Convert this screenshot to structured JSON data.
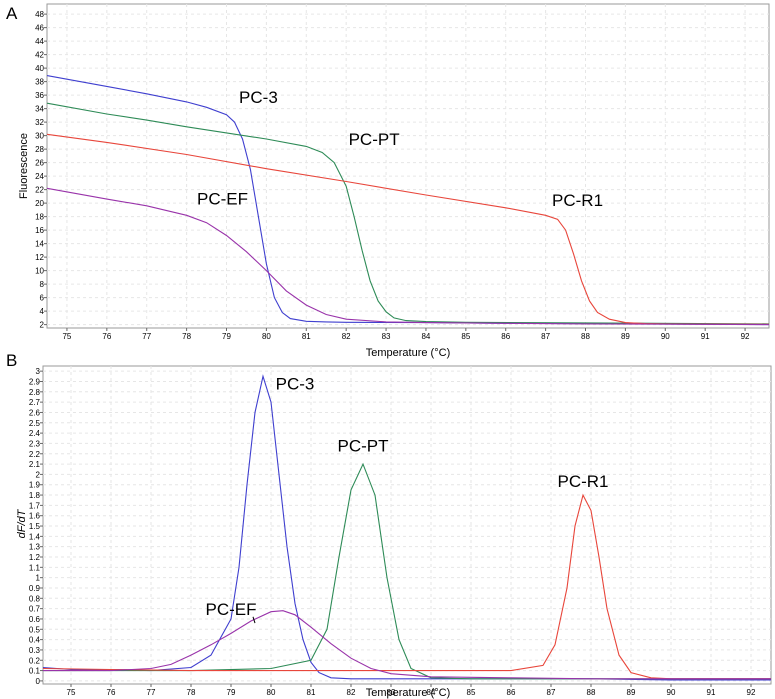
{
  "chart_data": [
    {
      "type": "line",
      "panel": "A",
      "xlabel": "Temperature (°C)",
      "ylabel": "Fluorescence",
      "xlim": [
        74.5,
        92.6
      ],
      "ylim": [
        1.5,
        49.5
      ],
      "xticks": [
        75,
        76,
        77,
        78,
        79,
        80,
        81,
        82,
        83,
        84,
        85,
        86,
        87,
        88,
        89,
        90,
        91,
        92
      ],
      "yticks": [
        2,
        4,
        6,
        8,
        10,
        12,
        14,
        16,
        18,
        20,
        22,
        24,
        26,
        28,
        30,
        32,
        34,
        36,
        38,
        40,
        42,
        44,
        46,
        48
      ],
      "grid": true,
      "series": [
        {
          "name": "PC-3",
          "color": "#3f3fcf",
          "x": [
            74.5,
            76,
            77,
            78,
            78.5,
            79,
            79.2,
            79.4,
            79.6,
            79.8,
            80,
            80.2,
            80.4,
            80.6,
            81,
            81.5,
            82,
            84,
            86,
            88,
            90,
            92.6
          ],
          "y": [
            38.9,
            37.3,
            36.2,
            35.0,
            34.2,
            33.1,
            32.0,
            29.5,
            25.0,
            18.0,
            11.0,
            6.0,
            3.8,
            2.9,
            2.5,
            2.4,
            2.35,
            2.3,
            2.2,
            2.15,
            2.1,
            2.0
          ]
        },
        {
          "name": "PC-PT",
          "color": "#2e8b57",
          "x": [
            74.5,
            76,
            77,
            78,
            79,
            80,
            81,
            81.4,
            81.7,
            82,
            82.2,
            82.4,
            82.6,
            82.8,
            83,
            83.2,
            83.5,
            84,
            85,
            88,
            92.6
          ],
          "y": [
            34.8,
            33.2,
            32.3,
            31.3,
            30.4,
            29.5,
            28.4,
            27.5,
            26.0,
            22.5,
            18.0,
            13.0,
            8.5,
            5.5,
            3.9,
            3.0,
            2.6,
            2.45,
            2.35,
            2.25,
            2.1
          ]
        },
        {
          "name": "PC-R1",
          "color": "#e8463b",
          "x": [
            74.5,
            76,
            78,
            80,
            82,
            84,
            86,
            87,
            87.3,
            87.5,
            87.7,
            87.9,
            88.1,
            88.3,
            88.6,
            89,
            89.5,
            90,
            92.6
          ],
          "y": [
            30.2,
            29.0,
            27.2,
            25.1,
            23.2,
            21.2,
            19.3,
            18.2,
            17.6,
            16.0,
            12.5,
            8.5,
            5.5,
            3.8,
            2.8,
            2.3,
            2.15,
            2.1,
            2.05
          ]
        },
        {
          "name": "PC-EF",
          "color": "#9933aa",
          "x": [
            74.5,
            76,
            77,
            78,
            78.5,
            79,
            79.5,
            80,
            80.5,
            81,
            81.5,
            82,
            83,
            84,
            86,
            88,
            92.6
          ],
          "y": [
            22.2,
            20.6,
            19.6,
            18.2,
            17.1,
            15.2,
            12.8,
            10.0,
            7.0,
            4.9,
            3.5,
            2.8,
            2.4,
            2.3,
            2.2,
            2.1,
            2.0
          ]
        }
      ],
      "annotations": [
        {
          "text": "PC-3",
          "x": 79.8,
          "y": 34.8
        },
        {
          "text": "PC-PT",
          "x": 82.7,
          "y": 28.6
        },
        {
          "text": "PC-R1",
          "x": 87.8,
          "y": 19.6
        },
        {
          "text": "PC-EF",
          "x": 78.9,
          "y": 19.8
        }
      ]
    },
    {
      "type": "line",
      "panel": "B",
      "xlabel": "Temperature (°C)",
      "ylabel": "dF/dT",
      "xlim": [
        74.3,
        92.5
      ],
      "ylim": [
        -0.03,
        3.05
      ],
      "xticks": [
        75,
        76,
        77,
        78,
        79,
        80,
        81,
        82,
        83,
        84,
        85,
        86,
        87,
        88,
        89,
        90,
        91,
        92
      ],
      "yticks": [
        0,
        0.1,
        0.2,
        0.3,
        0.4,
        0.5,
        0.6,
        0.7,
        0.8,
        0.9,
        1,
        1.1,
        1.2,
        1.3,
        1.4,
        1.5,
        1.6,
        1.7,
        1.8,
        1.9,
        2,
        2.1,
        2.2,
        2.3,
        2.4,
        2.5,
        2.6,
        2.7,
        2.8,
        2.9,
        3
      ],
      "grid": true,
      "series": [
        {
          "name": "PC-3",
          "color": "#3f3fcf",
          "x": [
            74.3,
            75,
            76,
            77,
            78,
            78.5,
            79,
            79.2,
            79.4,
            79.6,
            79.8,
            80,
            80.2,
            80.4,
            80.6,
            80.8,
            81,
            81.2,
            81.5,
            82,
            84,
            86,
            88,
            90,
            92.5
          ],
          "y": [
            0.13,
            0.11,
            0.11,
            0.1,
            0.13,
            0.25,
            0.6,
            1.1,
            1.9,
            2.6,
            2.95,
            2.7,
            2.0,
            1.3,
            0.75,
            0.4,
            0.18,
            0.08,
            0.03,
            0.02,
            0.02,
            0.02,
            0.02,
            0.01,
            0.01
          ]
        },
        {
          "name": "PC-PT",
          "color": "#2e8b57",
          "x": [
            74.3,
            76,
            78,
            80,
            81,
            81.4,
            81.7,
            82,
            82.3,
            82.6,
            82.9,
            83.2,
            83.5,
            84,
            85,
            88,
            92.5
          ],
          "y": [
            0.1,
            0.1,
            0.1,
            0.12,
            0.2,
            0.5,
            1.2,
            1.85,
            2.1,
            1.8,
            1.0,
            0.4,
            0.12,
            0.03,
            0.02,
            0.02,
            0.02
          ]
        },
        {
          "name": "PC-R1",
          "color": "#e8463b",
          "x": [
            74.3,
            76,
            78,
            80,
            82,
            84,
            86,
            86.8,
            87.1,
            87.4,
            87.6,
            87.8,
            88,
            88.2,
            88.4,
            88.7,
            89,
            89.5,
            90,
            92.5
          ],
          "y": [
            0.12,
            0.11,
            0.1,
            0.1,
            0.1,
            0.1,
            0.1,
            0.15,
            0.35,
            0.9,
            1.5,
            1.8,
            1.65,
            1.2,
            0.7,
            0.25,
            0.08,
            0.03,
            0.02,
            0.02
          ]
        },
        {
          "name": "PC-EF",
          "color": "#9933aa",
          "x": [
            74.3,
            75,
            76,
            77,
            77.5,
            78,
            78.5,
            79,
            79.5,
            80,
            80.3,
            80.6,
            81,
            81.5,
            82,
            82.5,
            83,
            84,
            86,
            88,
            92.5
          ],
          "y": [
            0.1,
            0.1,
            0.1,
            0.12,
            0.16,
            0.25,
            0.35,
            0.46,
            0.58,
            0.67,
            0.68,
            0.64,
            0.52,
            0.36,
            0.22,
            0.12,
            0.07,
            0.04,
            0.03,
            0.02,
            0.02
          ]
        }
      ],
      "annotations": [
        {
          "text": "PC-3",
          "x": 80.6,
          "y": 2.82
        },
        {
          "text": "PC-PT",
          "x": 82.3,
          "y": 2.22
        },
        {
          "text": "PC-R1",
          "x": 87.8,
          "y": 1.88
        },
        {
          "text": "PC-EF",
          "x": 79.0,
          "y": 0.64
        }
      ]
    }
  ],
  "panel_letters": [
    "A",
    "B"
  ]
}
